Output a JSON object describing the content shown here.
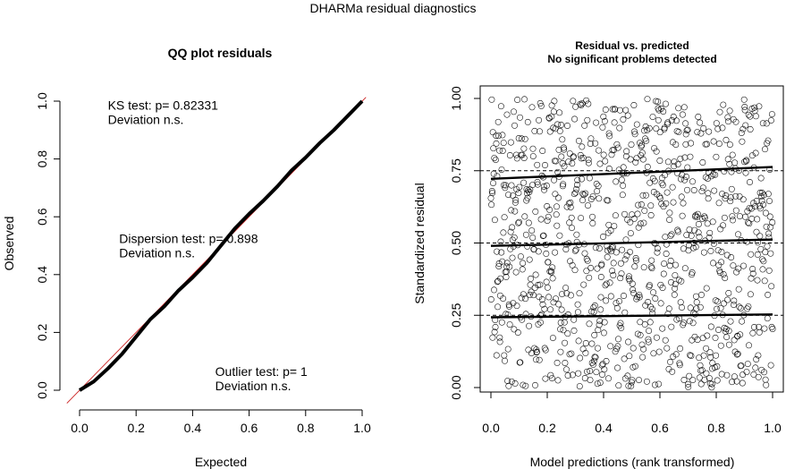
{
  "figure": {
    "title": "DHARMa residual diagnostics"
  },
  "chart_data": [
    {
      "type": "line",
      "panel": "left",
      "title": "QQ plot residuals",
      "xlabel": "Expected",
      "ylabel": "Observed",
      "xlim": [
        0,
        1
      ],
      "ylim": [
        0,
        1
      ],
      "xticks": [
        "0.0",
        "0.2",
        "0.4",
        "0.6",
        "0.8",
        "1.0"
      ],
      "yticks": [
        "0.0",
        "0.2",
        "0.4",
        "0.6",
        "0.8",
        "1.0"
      ],
      "reference_line": {
        "from": [
          0,
          0
        ],
        "to": [
          1,
          1
        ],
        "color": "#cc2222"
      },
      "series": [
        {
          "x": [
            0.0,
            0.05,
            0.1,
            0.15,
            0.2,
            0.25,
            0.3,
            0.35,
            0.4,
            0.45,
            0.5,
            0.55,
            0.6,
            0.65,
            0.7,
            0.75,
            0.8,
            0.85,
            0.9,
            0.95,
            1.0
          ],
          "y": [
            0.0,
            0.03,
            0.075,
            0.125,
            0.185,
            0.245,
            0.29,
            0.345,
            0.39,
            0.44,
            0.5,
            0.56,
            0.61,
            0.655,
            0.705,
            0.76,
            0.805,
            0.855,
            0.9,
            0.95,
            1.0
          ]
        }
      ],
      "annotations": [
        {
          "id": "ks",
          "line1": "KS test: p= 0.82331",
          "line2": "Deviation  n.s.",
          "at": [
            0.1,
            0.97
          ]
        },
        {
          "id": "dispersion",
          "line1": "Dispersion test: p= 0.898",
          "line2": "Deviation  n.s.",
          "at": [
            0.14,
            0.51
          ]
        },
        {
          "id": "outlier",
          "line1": "Outlier test: p= 1",
          "line2": "Deviation  n.s.",
          "at": [
            0.48,
            0.05
          ]
        }
      ]
    },
    {
      "type": "scatter",
      "panel": "right",
      "title": "Residual vs. predicted",
      "subtitle": "No significant problems detected",
      "xlabel": "Model predictions (rank transformed)",
      "ylabel": "Standardized residual",
      "xlim": [
        0,
        1
      ],
      "ylim": [
        0,
        1
      ],
      "xticks": [
        "0.0",
        "0.2",
        "0.4",
        "0.6",
        "0.8",
        "1.0"
      ],
      "yticks": [
        "0.00",
        "0.25",
        "0.50",
        "0.75",
        "1.00"
      ],
      "hlines": [
        0.25,
        0.5,
        0.75
      ],
      "n_points": 1000,
      "quantile_fits": [
        {
          "quantile": 0.25,
          "y0": 0.243,
          "y1": 0.253
        },
        {
          "quantile": 0.5,
          "y0": 0.49,
          "y1": 0.512
        },
        {
          "quantile": 0.75,
          "y0": 0.722,
          "y1": 0.763
        }
      ]
    }
  ]
}
